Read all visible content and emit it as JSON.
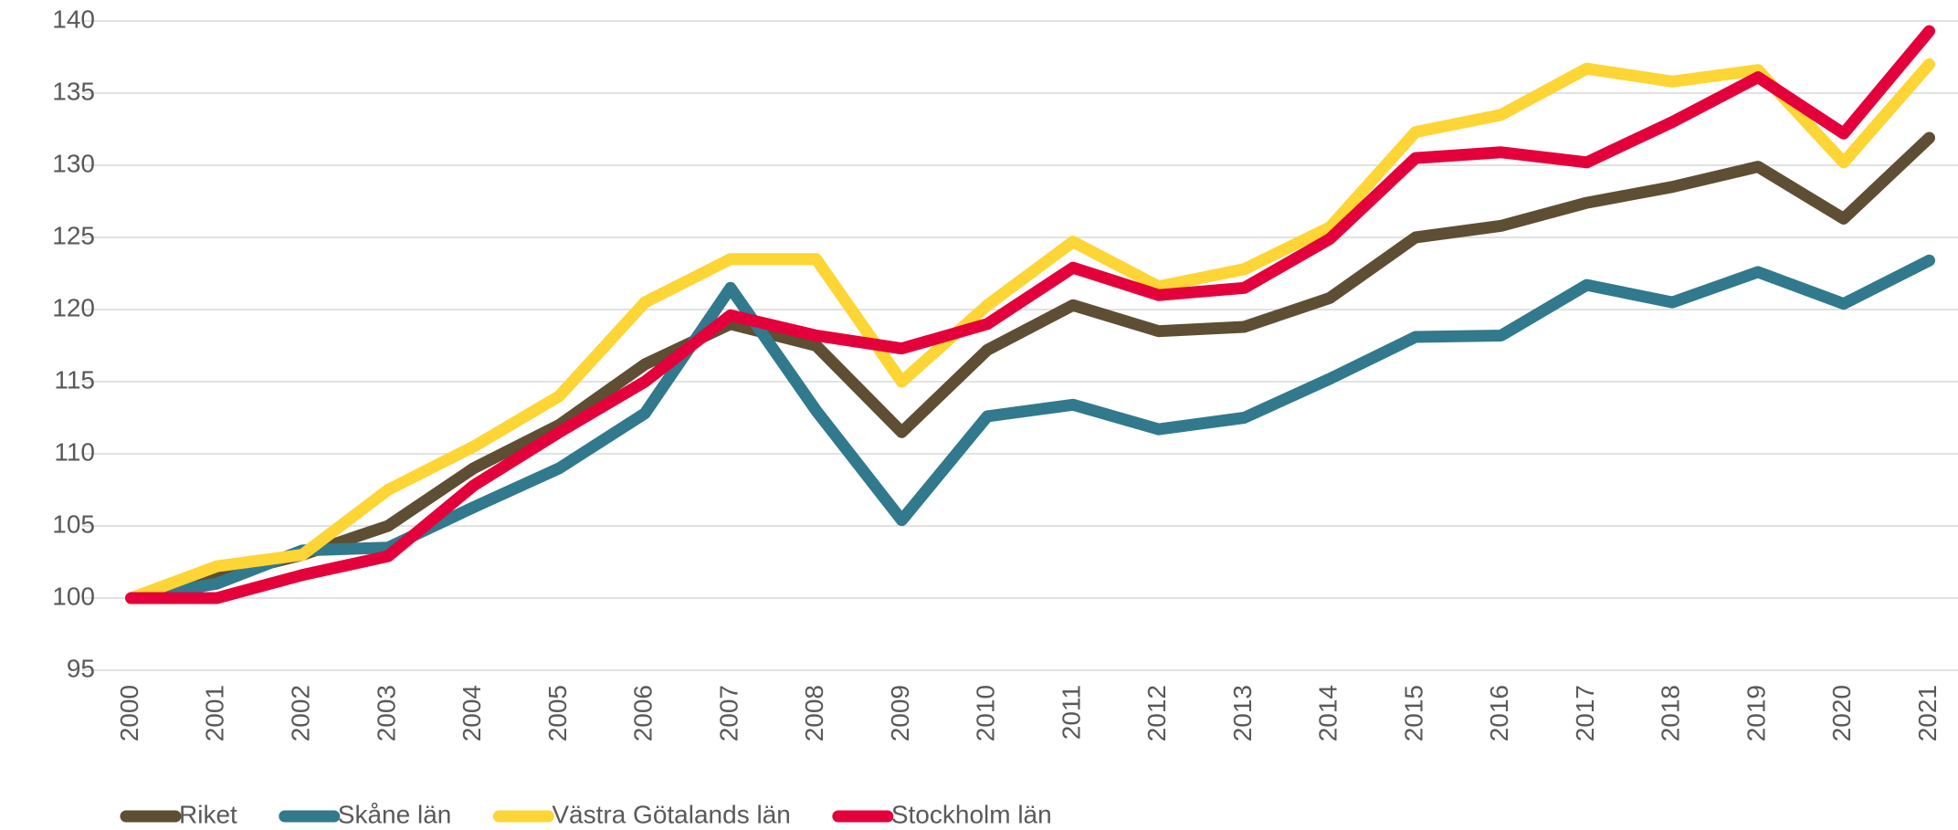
{
  "chart_data": {
    "type": "line",
    "categories": [
      "2000",
      "2001",
      "2002",
      "2003",
      "2004",
      "2005",
      "2006",
      "2007",
      "2008",
      "2009",
      "2010",
      "2011",
      "2012",
      "2013",
      "2014",
      "2015",
      "2016",
      "2017",
      "2018",
      "2019",
      "2020",
      "2021"
    ],
    "series": [
      {
        "name": "Riket",
        "color": "#5e4e33",
        "values": [
          100,
          101.5,
          103,
          105,
          109,
          112,
          116.2,
          119,
          117.5,
          111.5,
          117.2,
          120.3,
          118.5,
          118.8,
          120.8,
          125,
          125.8,
          127.4,
          128.5,
          129.9,
          126.3,
          131.9
        ]
      },
      {
        "name": "Skåne län",
        "color": "#31798c",
        "values": [
          100,
          101,
          103.3,
          103.5,
          106.3,
          109,
          112.8,
          121.5,
          113,
          105.4,
          112.6,
          113.4,
          111.7,
          112.5,
          115.2,
          118.1,
          118.2,
          121.7,
          120.5,
          122.6,
          120.4,
          123.4
        ]
      },
      {
        "name": "Västra Götalands län",
        "color": "#fdd535",
        "values": [
          100,
          102.2,
          103,
          107.5,
          110.5,
          114,
          120.5,
          123.5,
          123.5,
          115,
          120.3,
          124.7,
          121.6,
          122.8,
          125.7,
          132.3,
          133.5,
          136.7,
          135.8,
          136.6,
          130.2,
          137
        ]
      },
      {
        "name": "Stockholm län",
        "color": "#e4003a",
        "values": [
          100,
          100,
          101.6,
          102.9,
          107.8,
          111.5,
          115,
          119.6,
          118.2,
          117.3,
          119,
          122.9,
          121,
          121.5,
          124.9,
          130.5,
          130.9,
          130.2,
          133,
          136.1,
          132.2,
          139.3
        ]
      }
    ],
    "ylim": [
      95,
      140
    ],
    "yticks": [
      95,
      100,
      105,
      110,
      115,
      120,
      125,
      130,
      135,
      140
    ],
    "grid": true,
    "legend": "bottom"
  }
}
